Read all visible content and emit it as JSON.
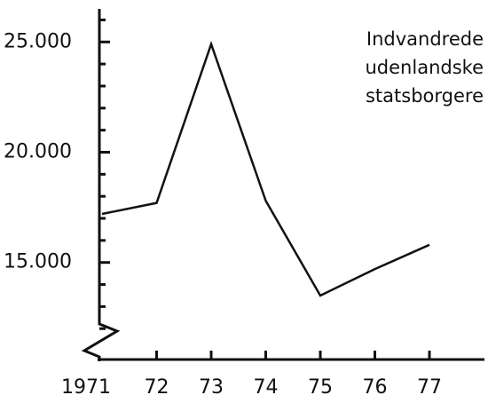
{
  "chart_data": {
    "type": "line",
    "categories": [
      "1971",
      "72",
      "73",
      "74",
      "75",
      "76",
      "77"
    ],
    "series": [
      {
        "name": "Indvandrede udenlandske statsborgere",
        "color": "#111111",
        "values": [
          17200,
          17700,
          24900,
          17800,
          13500,
          14700,
          15800
        ]
      }
    ],
    "annotation": [
      "Indvandrede",
      "udenlandske",
      "statsborgere"
    ],
    "ylim": [
      10600,
      26500
    ],
    "yticks": [
      {
        "value": 15000,
        "label": "15.000"
      },
      {
        "value": 20000,
        "label": "20.000"
      },
      {
        "value": 25000,
        "label": "25.000"
      }
    ],
    "yminorticks": [
      12000,
      13000,
      14000,
      16000,
      17000,
      18000,
      19000,
      21000,
      22000,
      23000,
      24000,
      26000
    ]
  }
}
